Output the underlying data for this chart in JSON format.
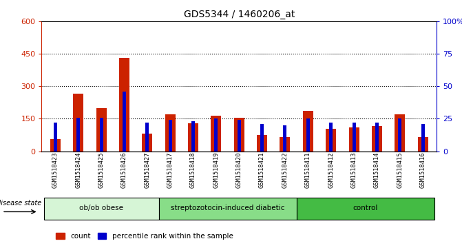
{
  "title": "GDS5344 / 1460206_at",
  "samples": [
    "GSM1518423",
    "GSM1518424",
    "GSM1518425",
    "GSM1518426",
    "GSM1518427",
    "GSM1518417",
    "GSM1518418",
    "GSM1518419",
    "GSM1518420",
    "GSM1518421",
    "GSM1518422",
    "GSM1518411",
    "GSM1518412",
    "GSM1518413",
    "GSM1518414",
    "GSM1518415",
    "GSM1518416"
  ],
  "counts": [
    55,
    265,
    200,
    430,
    80,
    170,
    130,
    165,
    155,
    75,
    65,
    185,
    105,
    110,
    115,
    170,
    65
  ],
  "percentiles": [
    22,
    26,
    26,
    46,
    22,
    24,
    23,
    25,
    24,
    21,
    20,
    25,
    22,
    22,
    22,
    25,
    21
  ],
  "groups": [
    {
      "label": "ob/ob obese",
      "start": 0,
      "end": 5,
      "color": "#d6f5d6"
    },
    {
      "label": "streptozotocin-induced diabetic",
      "start": 5,
      "end": 11,
      "color": "#88dd88"
    },
    {
      "label": "control",
      "start": 11,
      "end": 17,
      "color": "#44bb44"
    }
  ],
  "left_ylim": [
    0,
    600
  ],
  "right_ylim": [
    0,
    100
  ],
  "left_yticks": [
    0,
    150,
    300,
    450,
    600
  ],
  "right_yticks": [
    0,
    25,
    50,
    75,
    100
  ],
  "right_yticklabels": [
    "0",
    "25",
    "50",
    "75",
    "100%"
  ],
  "bar_color": "#cc2200",
  "percentile_color": "#0000cc",
  "grid_color": "black",
  "bg_color": "#d4d4d4",
  "plot_bg": "#ffffff",
  "title_color": "black",
  "left_tick_color": "#cc2200",
  "right_tick_color": "#0000cc",
  "red_bar_width": 0.45,
  "blue_bar_width": 0.15
}
